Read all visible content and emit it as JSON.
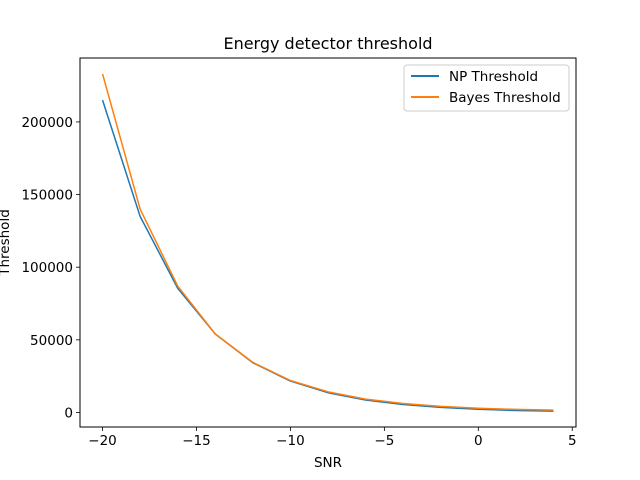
{
  "chart_data": {
    "type": "line",
    "title": "Energy detector threshold",
    "xlabel": "SNR",
    "ylabel": "Threshold",
    "xlim": [
      -21.2,
      5.2
    ],
    "ylim": [
      -10000,
      244000
    ],
    "xticks": [
      -20,
      -15,
      -10,
      -5,
      0,
      5
    ],
    "xtick_labels": [
      "−20",
      "−15",
      "−10",
      "−5",
      "0",
      "5"
    ],
    "yticks": [
      0,
      50000,
      100000,
      150000,
      200000
    ],
    "ytick_labels": [
      "0",
      "50000",
      "100000",
      "150000",
      "200000"
    ],
    "grid": false,
    "legend_position": "top-right",
    "series": [
      {
        "name": "NP Threshold",
        "color": "#1f77b4",
        "x": [
          -20,
          -18,
          -16,
          -14,
          -12,
          -10,
          -8,
          -6,
          -4,
          -2,
          0,
          2,
          4
        ],
        "y": [
          215000,
          135000,
          85500,
          54000,
          34200,
          21600,
          13600,
          8600,
          5500,
          3500,
          2200,
          1400,
          900
        ]
      },
      {
        "name": "Bayes Threshold",
        "color": "#ff7f0e",
        "x": [
          -20,
          -18,
          -16,
          -14,
          -12,
          -10,
          -8,
          -6,
          -4,
          -2,
          0,
          2,
          4
        ],
        "y": [
          233000,
          140000,
          87000,
          54000,
          34500,
          22000,
          14200,
          9200,
          6200,
          4200,
          2900,
          2100,
          1600
        ]
      }
    ]
  }
}
